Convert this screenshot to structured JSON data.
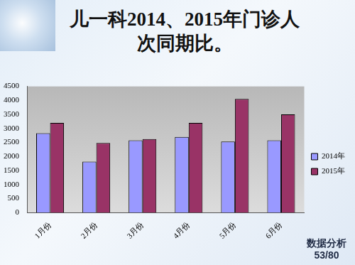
{
  "chart_data": {
    "type": "bar",
    "title": "儿一科2014、2015年门诊人次同期比。",
    "categories": [
      "1月份",
      "2月份",
      "3月份",
      "4月份",
      "5月份",
      "6月份"
    ],
    "series": [
      {
        "name": "2014年",
        "color": "#9999ff",
        "values": [
          2830,
          1820,
          2580,
          2700,
          2530,
          2580
        ]
      },
      {
        "name": "2015年",
        "color": "#993366",
        "values": [
          3200,
          2480,
          2620,
          3200,
          4050,
          3500
        ]
      }
    ],
    "ylim": [
      0,
      4500
    ],
    "yticks": [
      0,
      500,
      1000,
      1500,
      2000,
      2500,
      3000,
      3500,
      4000,
      4500
    ],
    "grid": false,
    "legend": "right"
  },
  "slide": {
    "footer": "数据分析",
    "page": "53/80"
  }
}
